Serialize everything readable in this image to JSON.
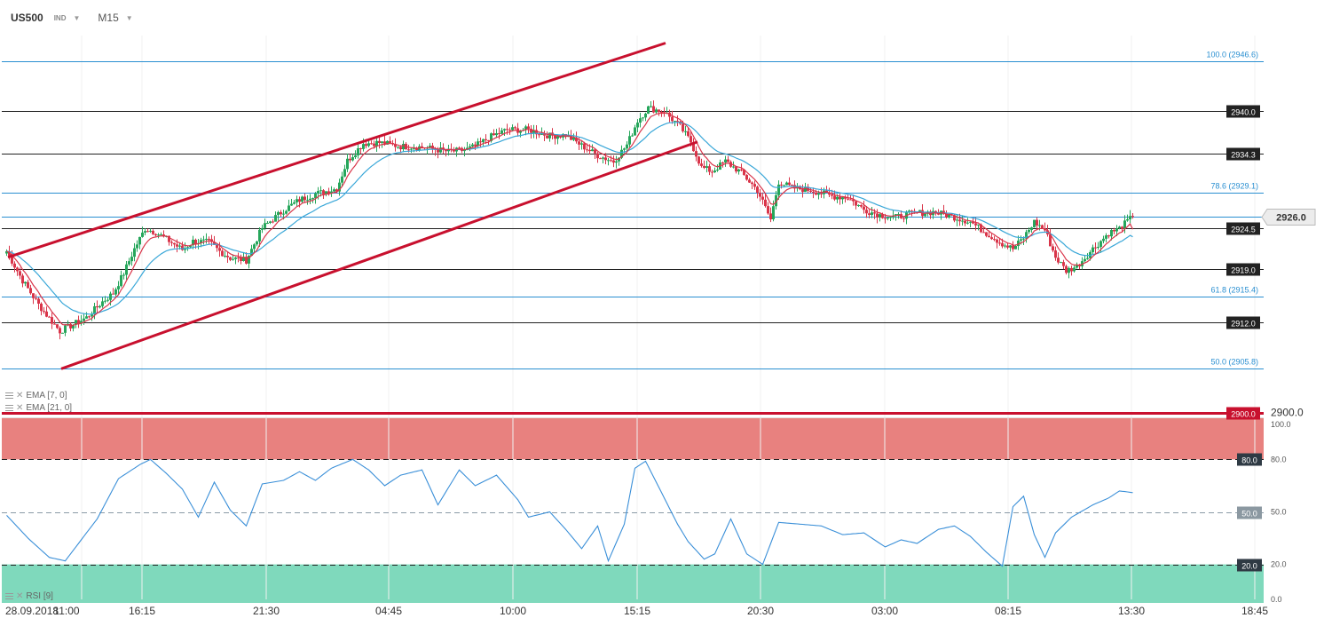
{
  "header": {
    "symbol": "US500",
    "asset_class": "IND",
    "timeframe": "M15"
  },
  "indicators": {
    "ema_fast": "EMA [7, 0]",
    "ema_slow": "EMA [21, 0]",
    "rsi": "RSI [9]"
  },
  "colors": {
    "bull": "#26a65b",
    "bear": "#d9354a",
    "ema_fast": "#d9354a",
    "ema_slow": "#39a7d8",
    "channel": "#c8102e",
    "fib": "#2a8fd1",
    "level": "#222222",
    "rsi_line": "#3a8fd8",
    "overbought_zone": "#e8817f",
    "oversold_zone": "#7fd9bc"
  },
  "chart_data": [
    {
      "type": "candlestick",
      "x_tick_labels": [
        "28.09.2018",
        "11:00",
        "16:15",
        "21:30",
        "04:45",
        "10:00",
        "15:15",
        "20:30",
        "03:00",
        "08:15",
        "13:30",
        "18:45"
      ],
      "ylim": [
        2899.6,
        2950.0
      ],
      "horizontal_levels": [
        {
          "value": 2940.0,
          "label": "2940.0",
          "kind": "level"
        },
        {
          "value": 2934.3,
          "label": "2934.3",
          "kind": "level"
        },
        {
          "value": 2924.5,
          "label": "2924.5",
          "kind": "level"
        },
        {
          "value": 2919.0,
          "label": "2919.0",
          "kind": "level"
        },
        {
          "value": 2912.0,
          "label": "2912.0",
          "kind": "level"
        },
        {
          "value": 2900.0,
          "label": "2900.0",
          "kind": "support"
        }
      ],
      "fib_levels": [
        {
          "value": 2946.6,
          "label": "100.0 (2946.6)"
        },
        {
          "value": 2929.1,
          "label": "78.6 (2929.1)"
        },
        {
          "value": 2915.4,
          "label": "61.8 (2915.4)"
        },
        {
          "value": 2905.8,
          "label": "50.0 (2905.8)"
        }
      ],
      "current_price": {
        "value": 2926.0,
        "label": "2926.0"
      },
      "support_right_label": "2900.0",
      "channel": {
        "upper": [
          [
            1,
            2920.6
          ],
          [
            248,
            2949.0
          ]
        ],
        "lower": [
          [
            21,
            2905.8
          ],
          [
            260,
            2935.9
          ]
        ]
      },
      "price_anchors": [
        [
          0,
          2921.4
        ],
        [
          6,
          2917.5
        ],
        [
          12,
          2914.3
        ],
        [
          16,
          2912.5
        ],
        [
          20,
          2910.8
        ],
        [
          24,
          2911.5
        ],
        [
          30,
          2912.6
        ],
        [
          36,
          2914.7
        ],
        [
          40,
          2915.8
        ],
        [
          44,
          2918.5
        ],
        [
          48,
          2921.7
        ],
        [
          52,
          2924.4
        ],
        [
          56,
          2923.9
        ],
        [
          60,
          2923.0
        ],
        [
          66,
          2921.6
        ],
        [
          70,
          2922.7
        ],
        [
          76,
          2922.6
        ],
        [
          80,
          2921.4
        ],
        [
          84,
          2920.5
        ],
        [
          90,
          2920.2
        ],
        [
          96,
          2924.5
        ],
        [
          104,
          2926.8
        ],
        [
          110,
          2928.2
        ],
        [
          116,
          2929.0
        ],
        [
          124,
          2929.7
        ],
        [
          128,
          2933.4
        ],
        [
          134,
          2935.7
        ],
        [
          140,
          2935.8
        ],
        [
          148,
          2935.3
        ],
        [
          156,
          2935.2
        ],
        [
          166,
          2934.6
        ],
        [
          172,
          2934.8
        ],
        [
          176,
          2935.3
        ],
        [
          182,
          2936.6
        ],
        [
          188,
          2937.5
        ],
        [
          196,
          2937.5
        ],
        [
          204,
          2936.7
        ],
        [
          210,
          2936.8
        ],
        [
          216,
          2935.4
        ],
        [
          222,
          2934.1
        ],
        [
          228,
          2933.3
        ],
        [
          233,
          2935.5
        ],
        [
          237,
          2938.7
        ],
        [
          241,
          2940.4
        ],
        [
          247,
          2939.9
        ],
        [
          253,
          2937.9
        ],
        [
          257,
          2935.9
        ],
        [
          261,
          2932.5
        ],
        [
          265,
          2932.0
        ],
        [
          270,
          2933.3
        ],
        [
          276,
          2931.8
        ],
        [
          282,
          2929.5
        ],
        [
          287,
          2925.6
        ],
        [
          290,
          2930.6
        ],
        [
          295,
          2929.8
        ],
        [
          302,
          2929.5
        ],
        [
          310,
          2928.7
        ],
        [
          316,
          2928.5
        ],
        [
          322,
          2926.9
        ],
        [
          328,
          2926.2
        ],
        [
          334,
          2925.9
        ],
        [
          340,
          2926.4
        ],
        [
          348,
          2926.6
        ],
        [
          354,
          2926.1
        ],
        [
          362,
          2925.3
        ],
        [
          368,
          2923.8
        ],
        [
          374,
          2922.4
        ],
        [
          378,
          2921.7
        ],
        [
          382,
          2923.2
        ],
        [
          386,
          2925.3
        ],
        [
          390,
          2924.2
        ],
        [
          394,
          2920.6
        ],
        [
          398,
          2918.8
        ],
        [
          402,
          2919.4
        ],
        [
          408,
          2921.7
        ],
        [
          414,
          2923.8
        ],
        [
          418,
          2924.4
        ],
        [
          423,
          2926.0
        ]
      ],
      "ema_fast_end": 2924.3,
      "ema_slow_end": 2923.3
    },
    {
      "type": "line",
      "name": "RSI [9]",
      "ylim": [
        0,
        100
      ],
      "y_tick_labels": [
        "100.0",
        "80.0",
        "50.0",
        "20.0",
        "0.0"
      ],
      "reference_levels": [
        {
          "value": 80,
          "label": "80.0"
        },
        {
          "value": 50,
          "label": "50.0"
        },
        {
          "value": 20,
          "label": "20.0"
        }
      ],
      "values": [
        [
          0,
          48
        ],
        [
          8,
          35
        ],
        [
          16,
          24
        ],
        [
          22,
          22
        ],
        [
          28,
          34
        ],
        [
          34,
          46
        ],
        [
          42,
          69
        ],
        [
          50,
          77
        ],
        [
          54,
          80
        ],
        [
          60,
          72
        ],
        [
          66,
          63
        ],
        [
          72,
          47
        ],
        [
          78,
          67
        ],
        [
          84,
          51
        ],
        [
          90,
          42
        ],
        [
          96,
          66
        ],
        [
          104,
          68
        ],
        [
          110,
          73
        ],
        [
          116,
          68
        ],
        [
          122,
          75
        ],
        [
          130,
          80
        ],
        [
          136,
          74
        ],
        [
          142,
          65
        ],
        [
          148,
          71
        ],
        [
          156,
          74
        ],
        [
          162,
          54
        ],
        [
          170,
          74
        ],
        [
          176,
          65
        ],
        [
          184,
          71
        ],
        [
          192,
          57
        ],
        [
          196,
          47
        ],
        [
          204,
          50
        ],
        [
          210,
          40
        ],
        [
          216,
          29
        ],
        [
          222,
          42
        ],
        [
          226,
          22
        ],
        [
          232,
          43
        ],
        [
          236,
          75
        ],
        [
          240,
          79
        ],
        [
          246,
          61
        ],
        [
          252,
          43
        ],
        [
          256,
          33
        ],
        [
          262,
          23
        ],
        [
          266,
          26
        ],
        [
          272,
          46
        ],
        [
          278,
          26
        ],
        [
          284,
          20
        ],
        [
          290,
          44
        ],
        [
          298,
          43
        ],
        [
          306,
          42
        ],
        [
          314,
          37
        ],
        [
          322,
          38
        ],
        [
          330,
          30
        ],
        [
          336,
          34
        ],
        [
          342,
          32
        ],
        [
          350,
          40
        ],
        [
          356,
          42
        ],
        [
          362,
          36
        ],
        [
          368,
          27
        ],
        [
          374,
          19
        ],
        [
          378,
          53
        ],
        [
          382,
          59
        ],
        [
          386,
          37
        ],
        [
          390,
          24
        ],
        [
          394,
          38
        ],
        [
          400,
          47
        ],
        [
          408,
          54
        ],
        [
          414,
          58
        ],
        [
          418,
          62
        ],
        [
          423,
          61
        ]
      ]
    }
  ]
}
